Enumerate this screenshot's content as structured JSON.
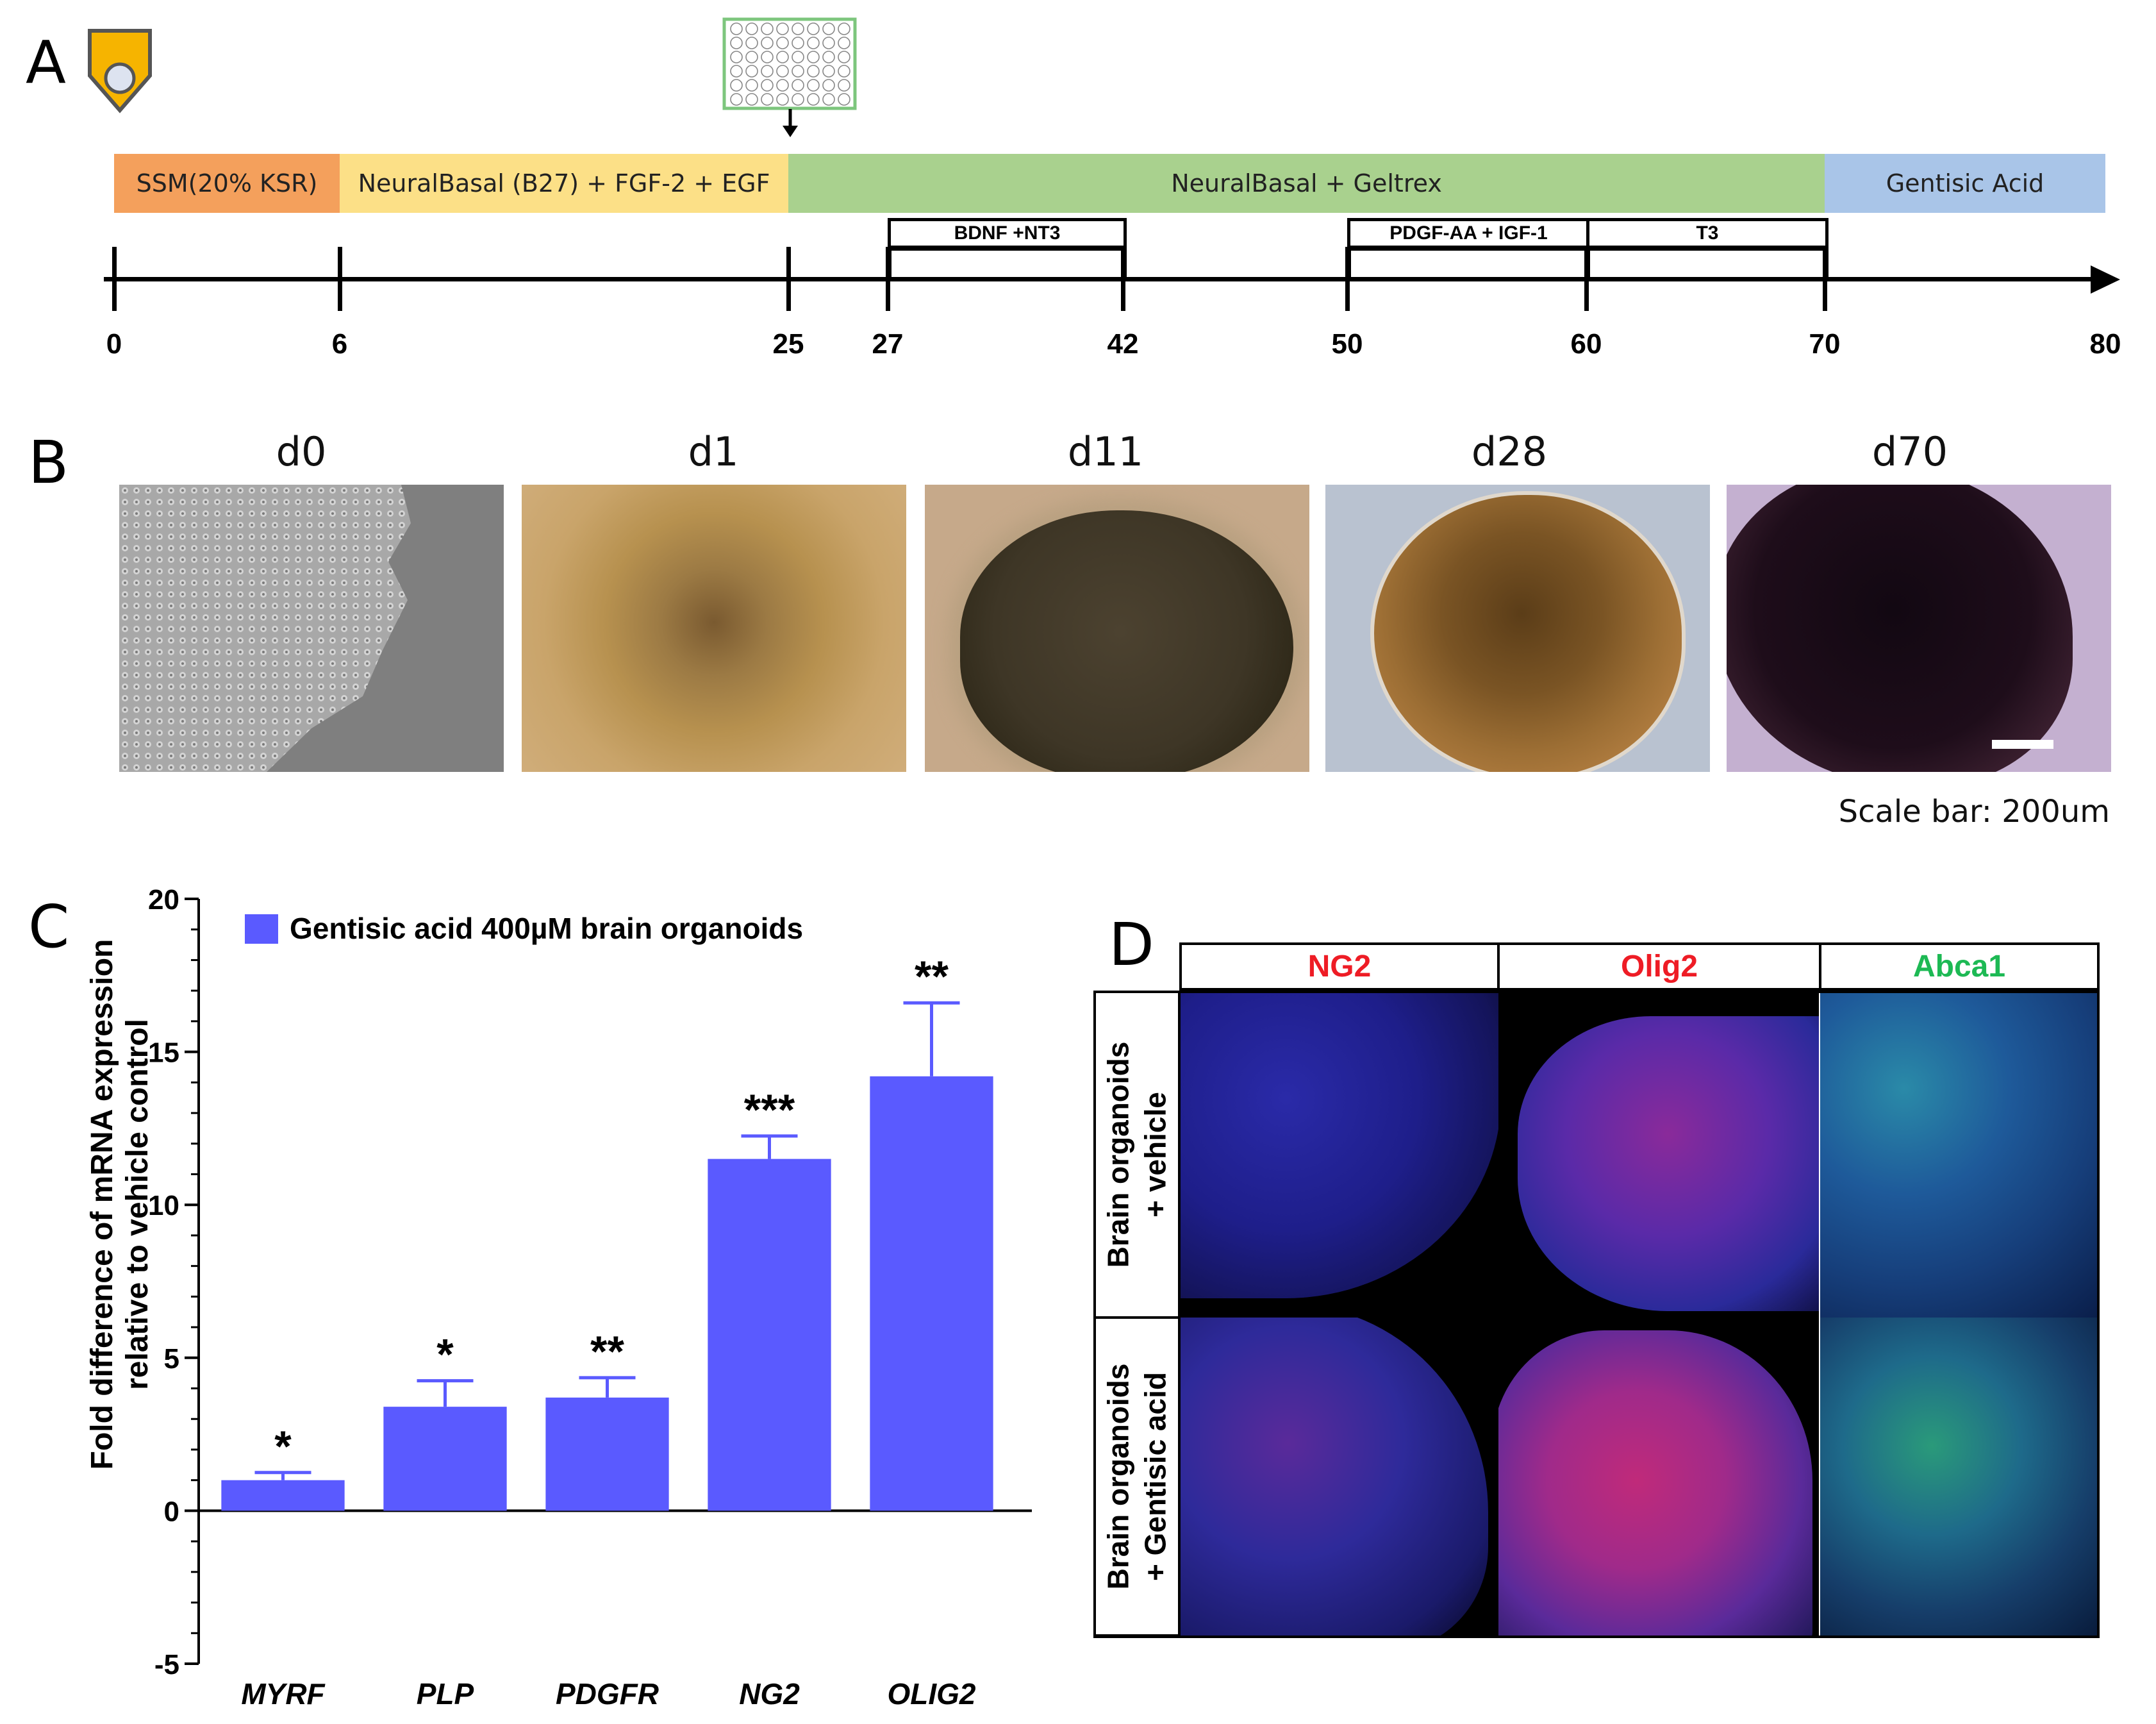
{
  "panels": {
    "a": "A",
    "b": "B",
    "c": "C",
    "d": "D"
  },
  "timeline": {
    "stages": [
      {
        "label": "SSM(20% KSR)",
        "color": "#f4a05c",
        "from": 0,
        "to": 6
      },
      {
        "label": "NeuralBasal (B27) + FGF-2 + EGF",
        "color": "#fce087",
        "from": 6,
        "to": 25
      },
      {
        "label": "NeuralBasal + Geltrex",
        "color": "#a9d18e",
        "from": 25,
        "to": 70
      },
      {
        "label": "Gentisic Acid",
        "color": "#a9c5e8",
        "from": 70,
        "to": 80
      }
    ],
    "factors": [
      {
        "label": "BDNF +NT3",
        "from": 27,
        "to": 42
      },
      {
        "label": "PDGF-AA + IGF-1",
        "from": 50,
        "to": 60
      },
      {
        "label": "T3",
        "from": 60,
        "to": 70
      }
    ],
    "days": [
      "0",
      "6",
      "25",
      "27",
      "42",
      "50",
      "60",
      "70",
      "80"
    ]
  },
  "images": {
    "titles": [
      "d0",
      "d1",
      "d11",
      "d28",
      "d70"
    ],
    "scale_note": "Scale bar: 200um"
  },
  "chart_data": {
    "type": "bar",
    "legend": "Gentisic acid 400µM brain organoids",
    "legend_position": "top-left",
    "ylabel_line1": "Fold difference of mRNA expression",
    "ylabel_line2": "relative to vehicle control",
    "xlabel": "",
    "ylim": [
      -5,
      20
    ],
    "yticks": [
      -5,
      0,
      5,
      10,
      15,
      20
    ],
    "categories": [
      "MYRF",
      "PLP",
      "PDGFR",
      "NG2",
      "OLIG2"
    ],
    "values": [
      1.0,
      3.4,
      3.7,
      11.5,
      14.2
    ],
    "errors": [
      0.25,
      0.85,
      0.65,
      0.75,
      2.4
    ],
    "significance": [
      "*",
      "*",
      "**",
      "***",
      "**"
    ],
    "bar_color": "#5a5aff",
    "grid": false
  },
  "staining": {
    "columns": [
      {
        "label": "NG2",
        "color": "#ee1c25"
      },
      {
        "label": "Olig2",
        "color": "#ee1c25"
      },
      {
        "label": "Abca1",
        "color": "#1db954"
      }
    ],
    "rows": [
      {
        "line1": "Brain organoids",
        "line2": "+ vehicle"
      },
      {
        "line1": "Brain organoids",
        "line2": "+ Gentisic acid"
      }
    ]
  }
}
